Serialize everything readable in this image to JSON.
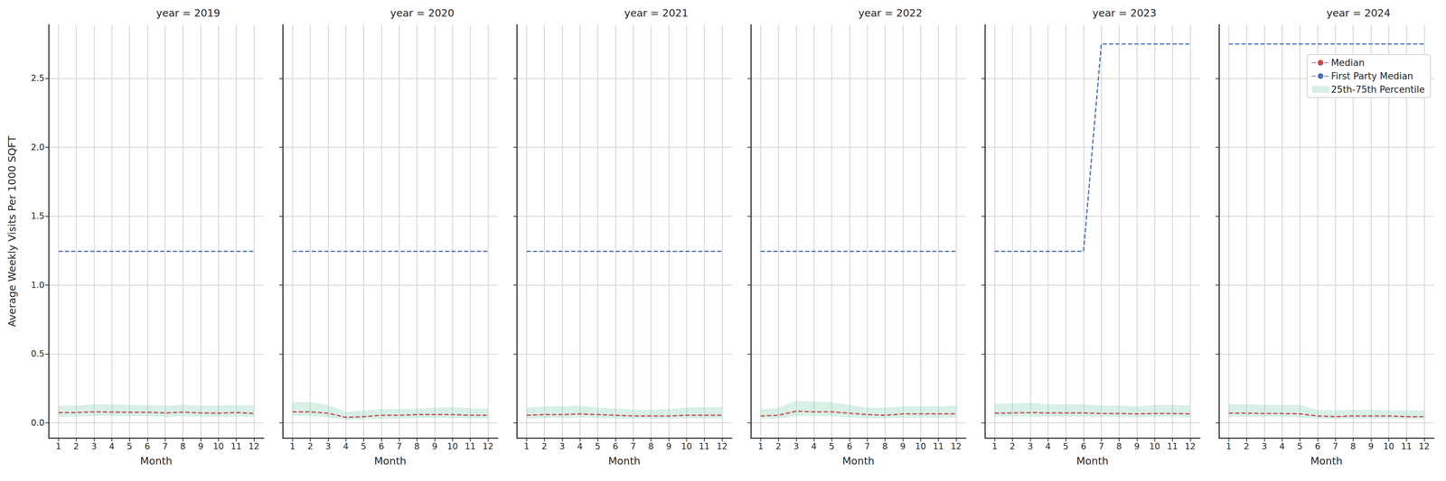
{
  "chart_data": [
    {
      "type": "line",
      "title": "year = 2019",
      "xlabel": "Month",
      "ylabel": "Average Weekly Visits Per 1000 SQFT",
      "x": [
        1,
        2,
        3,
        4,
        5,
        6,
        7,
        8,
        9,
        10,
        11,
        12
      ],
      "xlim": [
        0.45,
        12.55
      ],
      "xticks": [
        1,
        2,
        3,
        4,
        5,
        6,
        7,
        8,
        9,
        10,
        11,
        12
      ],
      "ylim": [
        -0.11,
        2.89
      ],
      "yticks": [
        {
          "value": 0,
          "label": "0.0"
        },
        0.5,
        {
          "value": 1,
          "label": "1.0"
        },
        1.5,
        {
          "value": 2,
          "label": "2.0"
        },
        2.5
      ],
      "grid": true,
      "series": [
        {
          "name": "25th-75th Percentile",
          "type": "band",
          "color": "#63c39b",
          "low": [
            0.045,
            0.045,
            0.05,
            0.05,
            0.048,
            0.048,
            0.045,
            0.048,
            0.045,
            0.044,
            0.046,
            0.042
          ],
          "high": [
            0.125,
            0.125,
            0.135,
            0.135,
            0.13,
            0.13,
            0.125,
            0.13,
            0.125,
            0.125,
            0.13,
            0.125
          ]
        },
        {
          "name": "Median",
          "type": "line",
          "color": "#c44e52",
          "line_style": "dashed",
          "values": [
            0.075,
            0.075,
            0.08,
            0.078,
            0.077,
            0.077,
            0.072,
            0.078,
            0.072,
            0.07,
            0.075,
            0.068
          ]
        },
        {
          "name": "First Party Median",
          "type": "line",
          "color": "#4c72b0",
          "line_style": "dashed",
          "values": [
            1.245,
            1.245,
            1.245,
            1.245,
            1.245,
            1.245,
            1.245,
            1.245,
            1.245,
            1.245,
            1.245,
            1.245
          ]
        }
      ]
    },
    {
      "type": "line",
      "title": "year = 2020",
      "xlabel": "Month",
      "x": [
        1,
        2,
        3,
        4,
        5,
        6,
        7,
        8,
        9,
        10,
        11,
        12
      ],
      "xlim": [
        0.45,
        12.55
      ],
      "xticks": [
        1,
        2,
        3,
        4,
        5,
        6,
        7,
        8,
        9,
        10,
        11,
        12
      ],
      "ylim": [
        -0.11,
        2.89
      ],
      "yticks": [
        {
          "value": 0,
          "label": "0.0"
        },
        0.5,
        {
          "value": 1,
          "label": "1.0"
        },
        1.5,
        {
          "value": 2,
          "label": "2.0"
        },
        2.5
      ],
      "grid": true,
      "tick_labels": "x",
      "series": [
        {
          "name": "25th-75th Percentile",
          "type": "band",
          "color": "#63c39b",
          "low": [
            0.05,
            0.05,
            0.04,
            0.02,
            0.025,
            0.03,
            0.03,
            0.035,
            0.035,
            0.035,
            0.032,
            0.032
          ],
          "high": [
            0.15,
            0.15,
            0.13,
            0.08,
            0.09,
            0.1,
            0.1,
            0.105,
            0.11,
            0.115,
            0.105,
            0.105
          ]
        },
        {
          "name": "Median",
          "type": "line",
          "color": "#c44e52",
          "line_style": "dashed",
          "values": [
            0.08,
            0.08,
            0.07,
            0.04,
            0.045,
            0.055,
            0.055,
            0.06,
            0.06,
            0.06,
            0.055,
            0.055
          ]
        },
        {
          "name": "First Party Median",
          "type": "line",
          "color": "#4c72b0",
          "line_style": "dashed",
          "values": [
            1.245,
            1.245,
            1.245,
            1.245,
            1.245,
            1.245,
            1.245,
            1.245,
            1.245,
            1.245,
            1.245,
            1.245
          ]
        }
      ]
    },
    {
      "type": "line",
      "title": "year = 2021",
      "xlabel": "Month",
      "x": [
        1,
        2,
        3,
        4,
        5,
        6,
        7,
        8,
        9,
        10,
        11,
        12
      ],
      "xlim": [
        0.45,
        12.55
      ],
      "xticks": [
        1,
        2,
        3,
        4,
        5,
        6,
        7,
        8,
        9,
        10,
        11,
        12
      ],
      "ylim": [
        -0.11,
        2.89
      ],
      "yticks": [
        {
          "value": 0,
          "label": "0.0"
        },
        0.5,
        {
          "value": 1,
          "label": "1.0"
        },
        1.5,
        {
          "value": 2,
          "label": "2.0"
        },
        2.5
      ],
      "grid": true,
      "tick_labels": "x",
      "series": [
        {
          "name": "25th-75th Percentile",
          "type": "band",
          "color": "#63c39b",
          "low": [
            0.03,
            0.035,
            0.035,
            0.04,
            0.035,
            0.032,
            0.03,
            0.03,
            0.03,
            0.032,
            0.032,
            0.032
          ],
          "high": [
            0.11,
            0.12,
            0.12,
            0.125,
            0.11,
            0.105,
            0.095,
            0.095,
            0.1,
            0.11,
            0.115,
            0.115
          ]
        },
        {
          "name": "Median",
          "type": "line",
          "color": "#c44e52",
          "line_style": "dashed",
          "values": [
            0.055,
            0.06,
            0.06,
            0.065,
            0.06,
            0.055,
            0.05,
            0.05,
            0.05,
            0.055,
            0.055,
            0.055
          ]
        },
        {
          "name": "First Party Median",
          "type": "line",
          "color": "#4c72b0",
          "line_style": "dashed",
          "values": [
            1.245,
            1.245,
            1.245,
            1.245,
            1.245,
            1.245,
            1.245,
            1.245,
            1.245,
            1.245,
            1.245,
            1.245
          ]
        }
      ]
    },
    {
      "type": "line",
      "title": "year = 2022",
      "xlabel": "Month",
      "x": [
        1,
        2,
        3,
        4,
        5,
        6,
        7,
        8,
        9,
        10,
        11,
        12
      ],
      "xlim": [
        0.45,
        12.55
      ],
      "xticks": [
        1,
        2,
        3,
        4,
        5,
        6,
        7,
        8,
        9,
        10,
        11,
        12
      ],
      "ylim": [
        -0.11,
        2.89
      ],
      "yticks": [
        {
          "value": 0,
          "label": "0.0"
        },
        0.5,
        {
          "value": 1,
          "label": "1.0"
        },
        1.5,
        {
          "value": 2,
          "label": "2.0"
        },
        2.5
      ],
      "grid": true,
      "tick_labels": "x",
      "series": [
        {
          "name": "25th-75th Percentile",
          "type": "band",
          "color": "#63c39b",
          "low": [
            0.03,
            0.032,
            0.05,
            0.048,
            0.048,
            0.04,
            0.035,
            0.032,
            0.038,
            0.038,
            0.038,
            0.038
          ],
          "high": [
            0.1,
            0.11,
            0.16,
            0.155,
            0.15,
            0.13,
            0.11,
            0.11,
            0.12,
            0.12,
            0.12,
            0.125
          ]
        },
        {
          "name": "Median",
          "type": "line",
          "color": "#c44e52",
          "line_style": "dashed",
          "values": [
            0.05,
            0.055,
            0.085,
            0.08,
            0.08,
            0.07,
            0.06,
            0.055,
            0.065,
            0.065,
            0.065,
            0.065
          ]
        },
        {
          "name": "First Party Median",
          "type": "line",
          "color": "#4c72b0",
          "line_style": "dashed",
          "values": [
            1.245,
            1.245,
            1.245,
            1.245,
            1.245,
            1.245,
            1.245,
            1.245,
            1.245,
            1.245,
            1.245,
            1.245
          ]
        }
      ]
    },
    {
      "type": "line",
      "title": "year = 2023",
      "xlabel": "Month",
      "x": [
        1,
        2,
        3,
        4,
        5,
        6,
        7,
        8,
        9,
        10,
        11,
        12
      ],
      "xlim": [
        0.45,
        12.55
      ],
      "xticks": [
        1,
        2,
        3,
        4,
        5,
        6,
        7,
        8,
        9,
        10,
        11,
        12
      ],
      "ylim": [
        -0.11,
        2.89
      ],
      "yticks": [
        {
          "value": 0,
          "label": "0.0"
        },
        0.5,
        {
          "value": 1,
          "label": "1.0"
        },
        1.5,
        {
          "value": 2,
          "label": "2.0"
        },
        2.5
      ],
      "grid": true,
      "tick_labels": "x",
      "series": [
        {
          "name": "25th-75th Percentile",
          "type": "band",
          "color": "#63c39b",
          "low": [
            0.045,
            0.045,
            0.047,
            0.045,
            0.045,
            0.045,
            0.042,
            0.042,
            0.04,
            0.042,
            0.042,
            0.04
          ],
          "high": [
            0.14,
            0.14,
            0.145,
            0.135,
            0.135,
            0.135,
            0.125,
            0.125,
            0.12,
            0.13,
            0.13,
            0.125
          ]
        },
        {
          "name": "Median",
          "type": "line",
          "color": "#c44e52",
          "line_style": "dashed",
          "values": [
            0.07,
            0.072,
            0.075,
            0.072,
            0.072,
            0.072,
            0.068,
            0.068,
            0.065,
            0.068,
            0.068,
            0.065
          ]
        },
        {
          "name": "First Party Median",
          "type": "line",
          "color": "#4c72b0",
          "line_style": "dashed",
          "values": [
            1.245,
            1.245,
            1.245,
            1.245,
            1.245,
            1.245,
            2.75,
            2.75,
            2.75,
            2.75,
            2.75,
            2.75
          ]
        }
      ]
    },
    {
      "type": "line",
      "title": "year = 2024",
      "xlabel": "Month",
      "x": [
        1,
        2,
        3,
        4,
        5,
        6,
        7,
        8,
        9,
        10,
        11,
        12
      ],
      "xlim": [
        0.45,
        12.55
      ],
      "xticks": [
        1,
        2,
        3,
        4,
        5,
        6,
        7,
        8,
        9,
        10,
        11,
        12
      ],
      "ylim": [
        -0.11,
        2.89
      ],
      "yticks": [
        {
          "value": 0,
          "label": "0.0"
        },
        0.5,
        {
          "value": 1,
          "label": "1.0"
        },
        1.5,
        {
          "value": 2,
          "label": "2.0"
        },
        2.5
      ],
      "grid": true,
      "tick_labels": "x",
      "legend": "upper right",
      "series": [
        {
          "name": "Median",
          "type": "line",
          "color": "#c44e52",
          "line_style": "dashed",
          "values": [
            0.07,
            0.07,
            0.068,
            0.068,
            0.065,
            0.05,
            0.045,
            0.05,
            0.05,
            0.05,
            0.045,
            0.045
          ]
        },
        {
          "name": "First Party Median",
          "type": "line",
          "color": "#4c72b0",
          "line_style": "dashed",
          "values": [
            2.75,
            2.75,
            2.75,
            2.75,
            2.75,
            2.75,
            2.75,
            2.75,
            2.75,
            2.75,
            2.75,
            2.75
          ]
        },
        {
          "name": "25th-75th Percentile",
          "type": "band",
          "color": "#63c39b",
          "low": [
            0.045,
            0.045,
            0.043,
            0.043,
            0.04,
            0.03,
            0.028,
            0.03,
            0.03,
            0.03,
            0.028,
            0.028
          ],
          "high": [
            0.135,
            0.135,
            0.13,
            0.13,
            0.13,
            0.095,
            0.09,
            0.095,
            0.095,
            0.09,
            0.09,
            0.09
          ]
        }
      ]
    }
  ]
}
